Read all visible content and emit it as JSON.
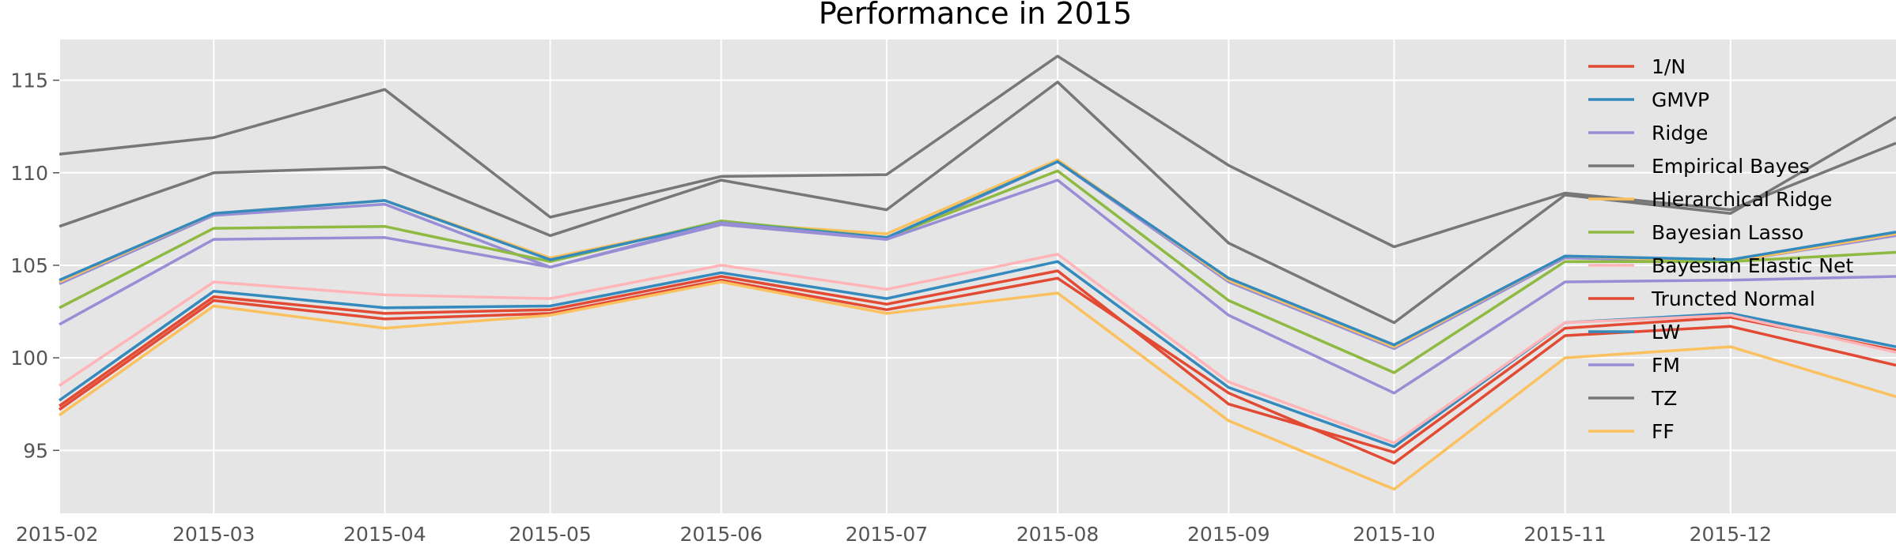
{
  "chart_data": {
    "type": "line",
    "title": "Performance in 2015",
    "xlabel": "",
    "ylabel": "",
    "x": [
      "2015-02-01",
      "2015-03-01",
      "2015-04-01",
      "2015-05-01",
      "2015-06-01",
      "2015-07-01",
      "2015-08-01",
      "2015-09-01",
      "2015-10-01",
      "2015-11-01",
      "2015-12-01",
      "2015-12-31"
    ],
    "x_ticks": [
      "2015-02",
      "2015-03",
      "2015-04",
      "2015-05",
      "2015-06",
      "2015-07",
      "2015-08",
      "2015-09",
      "2015-10",
      "2015-11",
      "2015-12"
    ],
    "xlim": [
      "2015-02-01",
      "2015-12-31"
    ],
    "y_ticks": [
      95,
      100,
      105,
      110,
      115
    ],
    "ylim": [
      91.6,
      117.2
    ],
    "grid": true,
    "plot_background": "#e5e5e5",
    "grid_color": "#ffffff",
    "legend_position": "top-right",
    "series": [
      {
        "name": "1/N",
        "color": "#E24A33",
        "values": [
          97.4,
          103.3,
          102.4,
          102.6,
          104.4,
          102.9,
          104.7,
          97.5,
          94.9,
          101.6,
          102.2,
          100.4
        ]
      },
      {
        "name": "GMVP",
        "color": "#348ABD",
        "values": [
          97.7,
          103.6,
          102.7,
          102.8,
          104.6,
          103.2,
          105.2,
          98.4,
          95.2,
          101.9,
          102.4,
          100.6
        ]
      },
      {
        "name": "Ridge",
        "color": "#988ED5",
        "values": [
          104.0,
          107.7,
          108.3,
          104.9,
          107.2,
          106.4,
          110.6,
          104.1,
          100.5,
          105.4,
          105.2,
          106.6
        ]
      },
      {
        "name": "Empirical Bayes",
        "color": "#777777",
        "values": [
          107.1,
          110.0,
          110.3,
          106.6,
          109.6,
          108.0,
          114.9,
          106.2,
          101.9,
          108.8,
          107.8,
          113.0
        ]
      },
      {
        "name": "Hierarchical Ridge",
        "color": "#FBC15E",
        "values": [
          104.1,
          107.8,
          108.5,
          105.4,
          107.3,
          106.7,
          110.7,
          104.2,
          100.6,
          105.5,
          105.2,
          106.7
        ]
      },
      {
        "name": "Bayesian Lasso",
        "color": "#8EBA42",
        "values": [
          102.7,
          107.0,
          107.1,
          105.2,
          107.4,
          106.5,
          110.1,
          103.1,
          99.2,
          105.2,
          105.2,
          105.7
        ]
      },
      {
        "name": "Bayesian Elastic Net",
        "color": "#FFB5B8",
        "values": [
          98.5,
          104.1,
          103.4,
          103.2,
          105.0,
          103.7,
          105.6,
          98.7,
          95.4,
          101.9,
          102.3,
          100.3
        ]
      },
      {
        "name": "Truncted Normal",
        "color": "#E24A33",
        "values": [
          97.2,
          103.1,
          102.1,
          102.4,
          104.2,
          102.6,
          104.3,
          98.1,
          94.3,
          101.2,
          101.7,
          99.6
        ]
      },
      {
        "name": "LW",
        "color": "#348ABD",
        "values": [
          104.2,
          107.8,
          108.5,
          105.3,
          107.3,
          106.5,
          110.6,
          104.3,
          100.7,
          105.5,
          105.3,
          106.8
        ]
      },
      {
        "name": "FM",
        "color": "#988ED5",
        "values": [
          101.8,
          106.4,
          106.5,
          104.9,
          107.3,
          106.4,
          109.6,
          102.3,
          98.1,
          104.1,
          104.2,
          104.4
        ]
      },
      {
        "name": "TZ",
        "color": "#777777",
        "values": [
          111.0,
          111.9,
          114.5,
          107.6,
          109.8,
          109.9,
          116.3,
          110.4,
          106.0,
          108.9,
          108.0,
          111.6
        ]
      },
      {
        "name": "FF",
        "color": "#FBC15E",
        "values": [
          96.9,
          102.8,
          101.6,
          102.3,
          104.1,
          102.4,
          103.5,
          96.6,
          92.9,
          100.0,
          100.6,
          97.9
        ]
      }
    ]
  }
}
